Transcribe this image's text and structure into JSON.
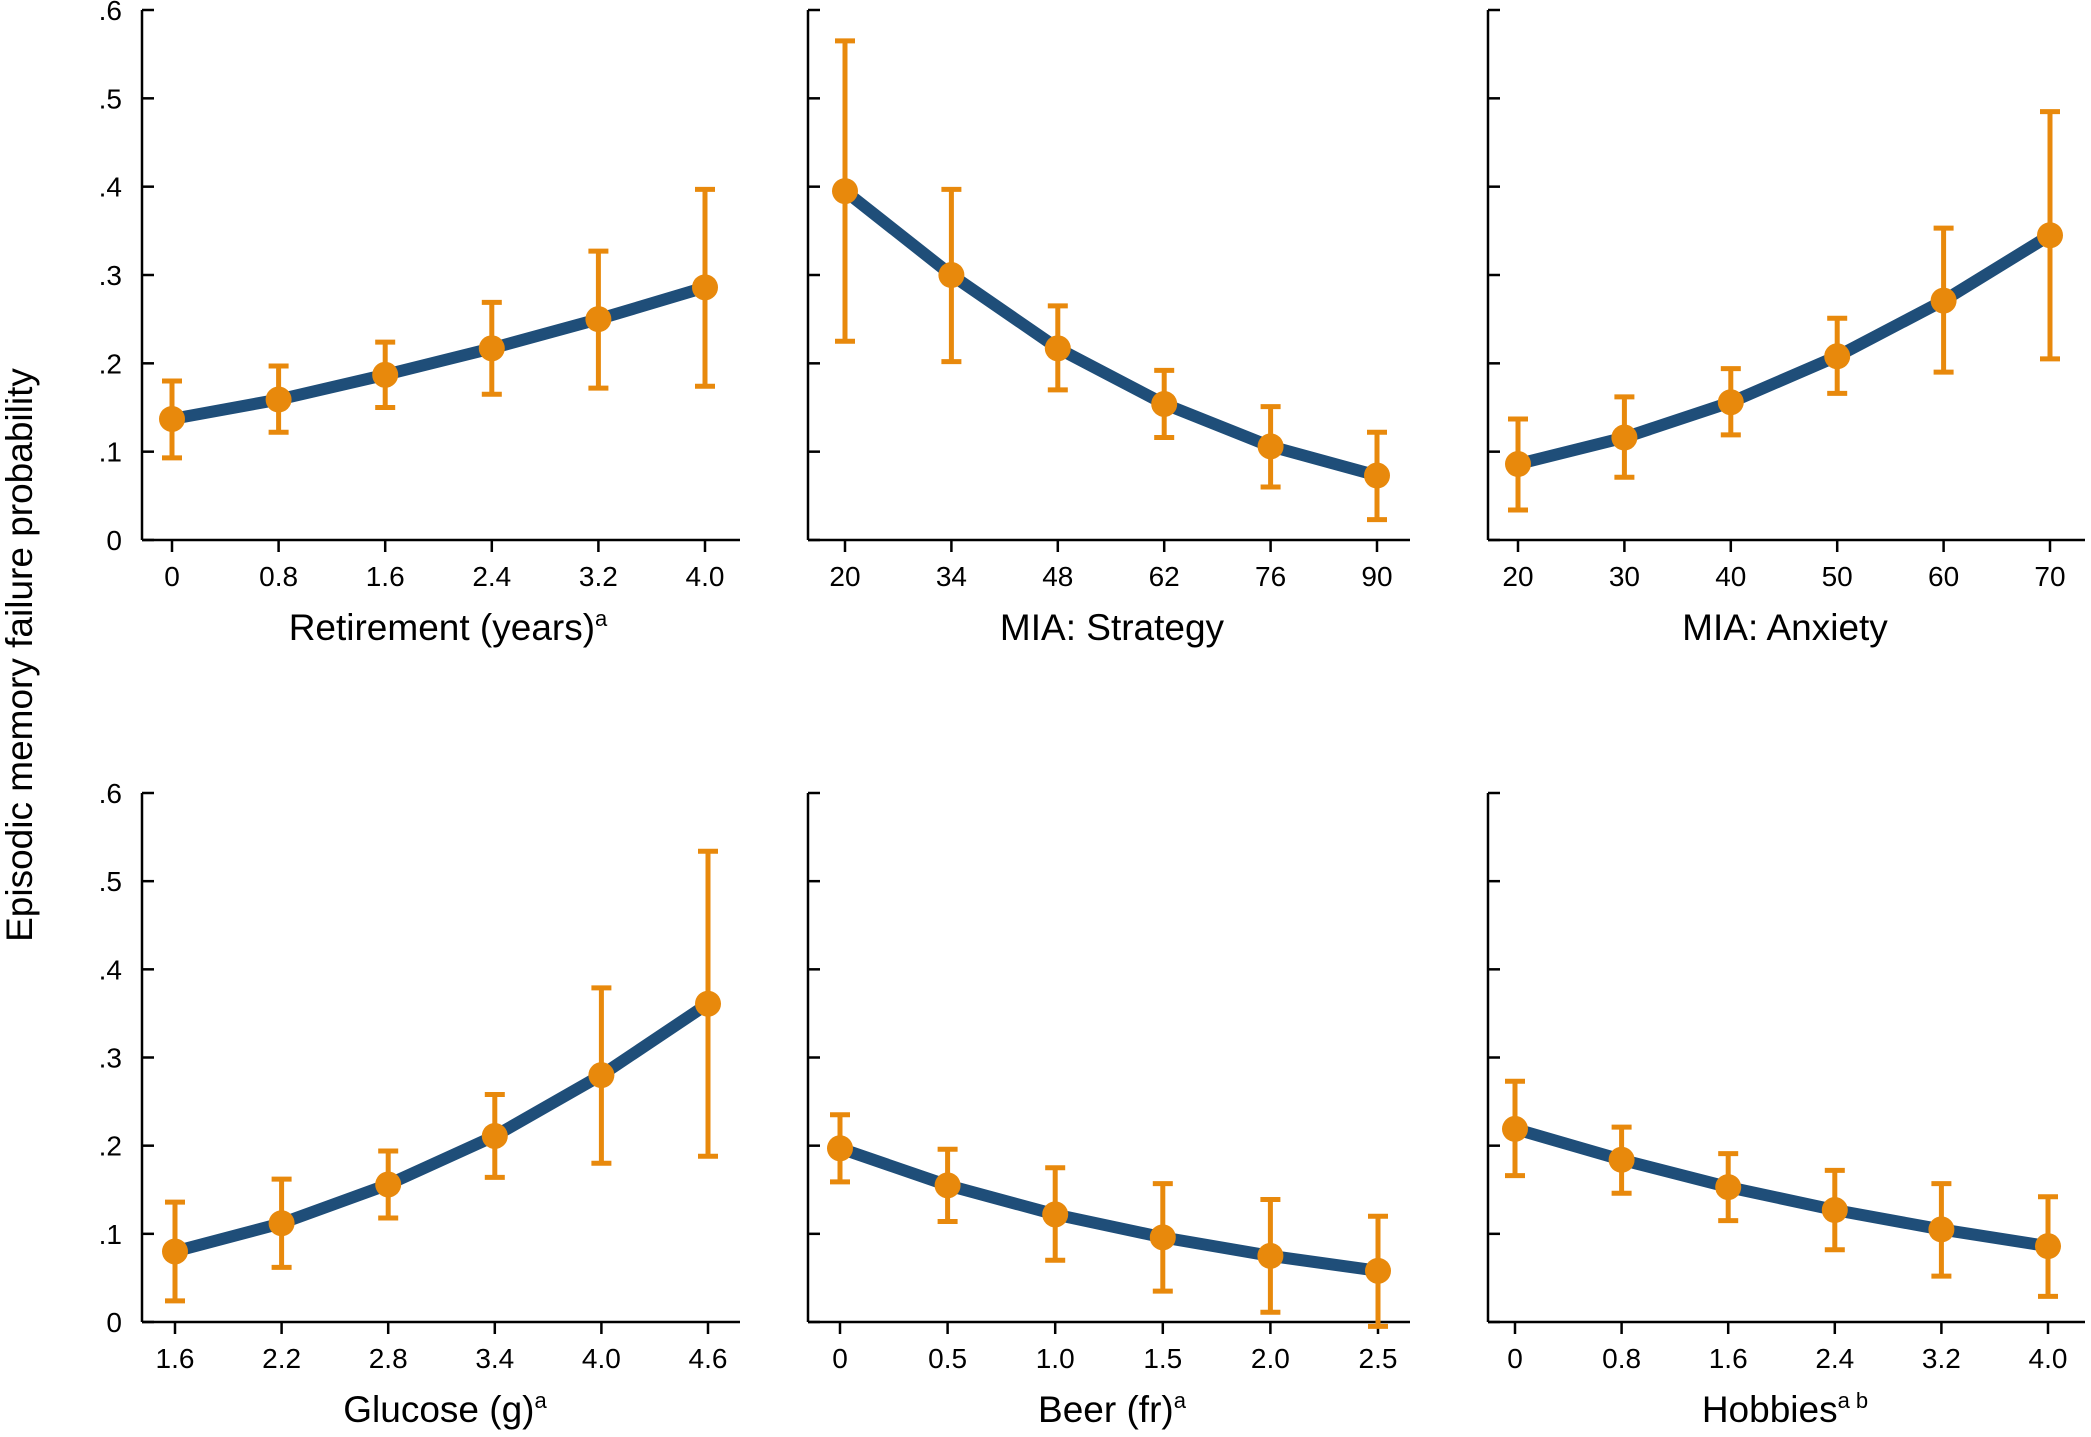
{
  "figure": {
    "ylabel": "Episodic memory failure probability"
  },
  "colors": {
    "line": "#1f4e79",
    "marker": "#e8890c",
    "axis": "#000000"
  },
  "chart_data": [
    {
      "type": "line",
      "title": "",
      "xlabel": "Retirement (years)",
      "xlabel_sup": "a",
      "ylabel": "Episodic memory failure probability",
      "ylim": [
        0,
        0.6
      ],
      "yticks": [
        0,
        0.1,
        0.2,
        0.3,
        0.4,
        0.5,
        0.6
      ],
      "ytick_labels": [
        "0",
        ".1",
        ".2",
        ".3",
        ".4",
        ".5",
        ".6"
      ],
      "show_ytick_labels": true,
      "categories": [
        "0",
        "0.8",
        "1.6",
        "2.4",
        "3.2",
        "4.0"
      ],
      "values": [
        0.137,
        0.159,
        0.187,
        0.217,
        0.25,
        0.286
      ],
      "ci_low": [
        0.093,
        0.122,
        0.15,
        0.165,
        0.172,
        0.174
      ],
      "ci_high": [
        0.18,
        0.197,
        0.224,
        0.269,
        0.327,
        0.397
      ]
    },
    {
      "type": "line",
      "title": "",
      "xlabel": "MIA: Strategy",
      "xlabel_sup": "",
      "ylim": [
        0,
        0.6
      ],
      "yticks": [
        0,
        0.1,
        0.2,
        0.3,
        0.4,
        0.5,
        0.6
      ],
      "ytick_labels": [
        "0",
        ".1",
        ".2",
        ".3",
        ".4",
        ".5",
        ".6"
      ],
      "show_ytick_labels": false,
      "categories": [
        "20",
        "34",
        "48",
        "62",
        "76",
        "90"
      ],
      "values": [
        0.395,
        0.3,
        0.217,
        0.154,
        0.106,
        0.073
      ],
      "ci_low": [
        0.225,
        0.202,
        0.17,
        0.116,
        0.06,
        0.023
      ],
      "ci_high": [
        0.565,
        0.397,
        0.265,
        0.192,
        0.151,
        0.122
      ]
    },
    {
      "type": "line",
      "title": "",
      "xlabel": "MIA: Anxiety",
      "xlabel_sup": "",
      "ylim": [
        0,
        0.6
      ],
      "yticks": [
        0,
        0.1,
        0.2,
        0.3,
        0.4,
        0.5,
        0.6
      ],
      "ytick_labels": [
        "0",
        ".1",
        ".2",
        ".3",
        ".4",
        ".5",
        ".6"
      ],
      "show_ytick_labels": false,
      "categories": [
        "20",
        "30",
        "40",
        "50",
        "60",
        "70"
      ],
      "values": [
        0.086,
        0.116,
        0.156,
        0.208,
        0.271,
        0.345
      ],
      "ci_low": [
        0.034,
        0.071,
        0.119,
        0.166,
        0.19,
        0.205
      ],
      "ci_high": [
        0.137,
        0.162,
        0.194,
        0.251,
        0.353,
        0.485
      ]
    },
    {
      "type": "line",
      "title": "",
      "xlabel": "Glucose (g)",
      "xlabel_sup": "a",
      "ylabel": "Episodic memory failure probability",
      "ylim": [
        0,
        0.6
      ],
      "yticks": [
        0,
        0.1,
        0.2,
        0.3,
        0.4,
        0.5,
        0.6
      ],
      "ytick_labels": [
        "0",
        ".1",
        ".2",
        ".3",
        ".4",
        ".5",
        ".6"
      ],
      "show_ytick_labels": true,
      "categories": [
        "1.6",
        "2.2",
        "2.8",
        "3.4",
        "4.0",
        "4.6"
      ],
      "values": [
        0.08,
        0.112,
        0.156,
        0.211,
        0.28,
        0.361
      ],
      "ci_low": [
        0.024,
        0.062,
        0.118,
        0.164,
        0.18,
        0.188
      ],
      "ci_high": [
        0.136,
        0.162,
        0.194,
        0.258,
        0.379,
        0.534
      ]
    },
    {
      "type": "line",
      "title": "",
      "xlabel": "Beer (fr)",
      "xlabel_sup": "a",
      "ylim": [
        0,
        0.6
      ],
      "yticks": [
        0,
        0.1,
        0.2,
        0.3,
        0.4,
        0.5,
        0.6
      ],
      "ytick_labels": [
        "0",
        ".1",
        ".2",
        ".3",
        ".4",
        ".5",
        ".6"
      ],
      "show_ytick_labels": false,
      "categories": [
        "0",
        "0.5",
        "1.0",
        "1.5",
        "2.0",
        "2.5"
      ],
      "values": [
        0.197,
        0.155,
        0.122,
        0.096,
        0.075,
        0.058
      ],
      "ci_low": [
        0.159,
        0.114,
        0.07,
        0.035,
        0.011,
        -0.005
      ],
      "ci_high": [
        0.235,
        0.196,
        0.175,
        0.157,
        0.139,
        0.12
      ]
    },
    {
      "type": "line",
      "title": "",
      "xlabel": "Hobbies",
      "xlabel_sup": "a b",
      "ylim": [
        0,
        0.6
      ],
      "yticks": [
        0,
        0.1,
        0.2,
        0.3,
        0.4,
        0.5,
        0.6
      ],
      "ytick_labels": [
        "0",
        ".1",
        ".2",
        ".3",
        ".4",
        ".5",
        ".6"
      ],
      "show_ytick_labels": false,
      "categories": [
        "0",
        "0.8",
        "1.6",
        "2.4",
        "3.2",
        "4.0"
      ],
      "values": [
        0.219,
        0.184,
        0.153,
        0.127,
        0.105,
        0.086
      ],
      "ci_low": [
        0.166,
        0.146,
        0.115,
        0.082,
        0.052,
        0.029
      ],
      "ci_high": [
        0.273,
        0.221,
        0.191,
        0.172,
        0.157,
        0.142
      ]
    }
  ]
}
